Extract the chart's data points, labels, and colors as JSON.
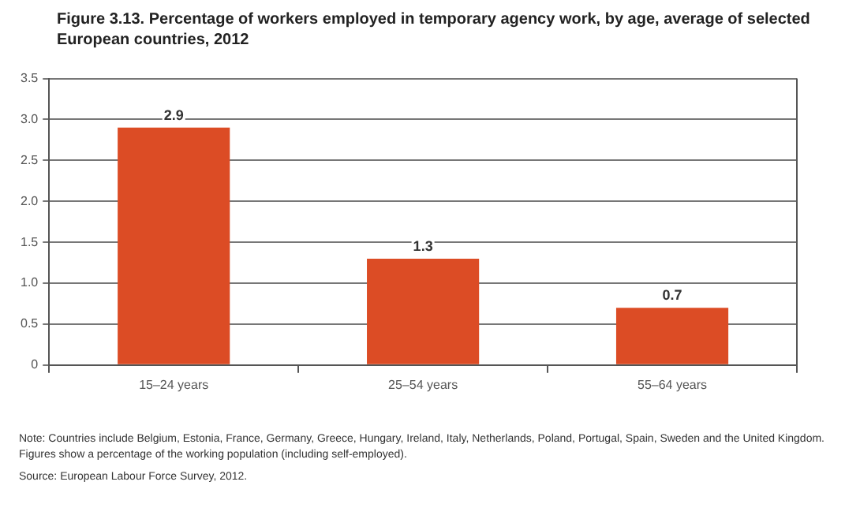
{
  "chart_data": {
    "type": "bar",
    "title": "Figure 3.13.  Percentage of workers employed in temporary agency work, by age, average of selected European countries, 2012",
    "categories": [
      "15–24 years",
      "25–54 years",
      "55–64 years"
    ],
    "values": [
      2.9,
      1.3,
      0.7
    ],
    "color": "#dc4c25",
    "ylim": [
      0,
      3.5
    ],
    "yticks": [
      0,
      0.5,
      {
        "value": 1,
        "label": "1.0"
      },
      1.5,
      {
        "value": 2,
        "label": "2.0"
      },
      2.5,
      {
        "value": 3,
        "label": "3.0"
      },
      3.5
    ],
    "grid": "y",
    "data_labels": true,
    "annotations": [
      "Note: Countries include Belgium, Estonia, France, Germany, Greece, Hungary, Ireland, Italy, Netherlands, Poland, Portugal, Spain, Sweden and the United Kingdom. Figures show a percentage of the working population (including self-employed).",
      "Source: European Labour Force Survey, 2012."
    ]
  }
}
